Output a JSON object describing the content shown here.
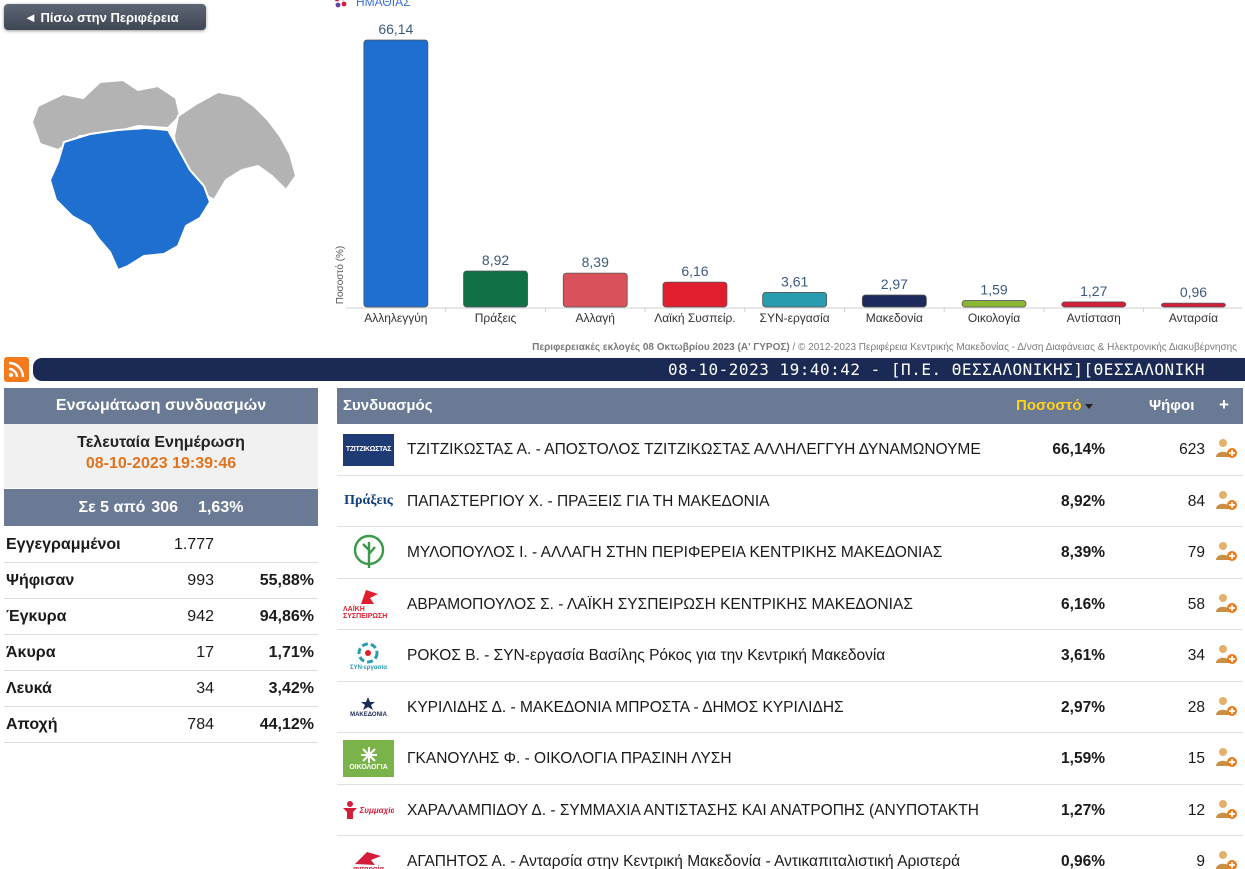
{
  "back_button": "◄ Πίσω στην Περιφέρεια",
  "chart_region_label": "ΗΜΑΘΙΑΣ",
  "chart_data": {
    "type": "bar",
    "categories": [
      "Αλληλεγγύη",
      "Πράξεις",
      "Αλλαγή",
      "Λαϊκή Συσπείρ.",
      "ΣΥΝ-εργασία",
      "Μακεδονία",
      "Οικολογία",
      "Αντίσταση",
      "Ανταρσία"
    ],
    "values": [
      66.14,
      8.92,
      8.39,
      6.16,
      3.61,
      2.97,
      1.59,
      1.27,
      0.96
    ],
    "value_labels": [
      "66,14",
      "8,92",
      "8,39",
      "6,16",
      "3,61",
      "2,97",
      "1,59",
      "1,27",
      "0,96"
    ],
    "colors": [
      "#1e6fd0",
      "#127046",
      "#d9515b",
      "#e01e2e",
      "#2a9cb0",
      "#1c2a5c",
      "#8ab833",
      "#d21e3a",
      "#d21e3a"
    ],
    "ylabel": "Ποσοστό (%)",
    "ylim": [
      0,
      70
    ],
    "grid": false,
    "legend": "none"
  },
  "credits_bold": "Περιφερειακές εκλογές 08 Οκτωβρίου 2023 (Α' ΓΥΡΟΣ)",
  "credits_rest": " / © 2012-2023 Περιφέρεια Κεντρικής Μακεδονίας - Δ/νση Διαφάνειας & Ηλεκτρονικής Διακυβέρνησης",
  "ticker_text": "08-10-2023 19:40:42 - [Π.Ε. ΘΕΣΣΑΛΟΝΙΚΗΣ][ΘΕΣΣΑΛΟΝΙΚΗ",
  "left_panel": {
    "title": "Ενσωμάτωση συνδυασμών",
    "update_label": "Τελευταία Ενημέρωση",
    "update_time": "08-10-2023 19:39:46",
    "count_prefix": "Σε 5 από",
    "count_total": "306",
    "count_pct": "1,63%",
    "stats": [
      {
        "label": "Εγγεγραμμένοι",
        "value": "1.777",
        "pct": ""
      },
      {
        "label": "Ψήφισαν",
        "value": "993",
        "pct": "55,88%"
      },
      {
        "label": "Έγκυρα",
        "value": "942",
        "pct": "94,86%"
      },
      {
        "label": "Άκυρα",
        "value": "17",
        "pct": "1,71%"
      },
      {
        "label": "Λευκά",
        "value": "34",
        "pct": "3,42%"
      },
      {
        "label": "Αποχή",
        "value": "784",
        "pct": "44,12%"
      }
    ]
  },
  "table": {
    "col_party": "Συνδυασμός",
    "col_pct": "Ποσοστό",
    "col_votes": "Ψήφοι",
    "col_plus": "+",
    "rows": [
      {
        "logo": "ΤΖΙΤΖΙΚΩΣΤΑΣ",
        "name": "ΤΖΙΤΖΙΚΩΣΤΑΣ Α. - ΑΠΟΣΤΟΛΟΣ ΤΖΙΤΖΙΚΩΣΤΑΣ ΑΛΛΗΛΕΓΓΥΗ ΔΥΝΑΜΩΝΟΥΜΕ",
        "pct": "66,14%",
        "votes": "623"
      },
      {
        "logo": "Πράξεις",
        "name": "ΠΑΠΑΣΤΕΡΓΙΟΥ Χ. - ΠΡΑΞΕΙΣ ΓΙΑ ΤΗ ΜΑΚΕΔΟΝΙΑ",
        "pct": "8,92%",
        "votes": "84"
      },
      {
        "logo": "",
        "name": "ΜΥΛΟΠΟΥΛΟΣ Ι. - ΑΛΛΑΓΗ ΣΤΗΝ ΠΕΡΙΦΕΡΕΙΑ ΚΕΝΤΡΙΚΗΣ ΜΑΚΕΔΟΝΙΑΣ",
        "pct": "8,39%",
        "votes": "79"
      },
      {
        "logo": "ΛΑΪΚΗ ΣΥΣΠΕΙΡΩΣΗ",
        "name": "ΑΒΡΑΜΟΠΟΥΛΟΣ Σ. - ΛΑΪΚΗ ΣΥΣΠΕΙΡΩΣΗ ΚΕΝΤΡΙΚΗΣ ΜΑΚΕΔΟΝΙΑΣ",
        "pct": "6,16%",
        "votes": "58"
      },
      {
        "logo": "ΣΥΝ-εργασία",
        "name": "ΡΟΚΟΣ Β. - ΣΥΝ-εργασία Βασίλης Ρόκος για την Κεντρική Μακεδονία",
        "pct": "3,61%",
        "votes": "34"
      },
      {
        "logo": "ΜΑΚΕΔΟΝΙΑ",
        "name": "ΚΥΡΙΛΙΔΗΣ Δ. - ΜΑΚΕΔΟΝΙΑ ΜΠΡΟΣΤΑ - ΔΗΜΟΣ ΚΥΡΙΛΙΔΗΣ",
        "pct": "2,97%",
        "votes": "28"
      },
      {
        "logo": "ΟΙΚΟΛΟΓΙΑ",
        "name": "ΓΚΑΝΟΥΛΗΣ Φ. - ΟΙΚΟΛΟΓΙΑ ΠΡΑΣΙΝΗ ΛΥΣΗ",
        "pct": "1,59%",
        "votes": "15"
      },
      {
        "logo": "Συμμαχία",
        "name": "ΧΑΡΑΛΑΜΠΙΔΟΥ Δ. - ΣΥΜΜΑΧΙΑ ΑΝΤΙΣΤΑΣΗΣ ΚΑΙ ΑΝΑΤΡΟΠΗΣ (ΑΝΥΠΟΤΑΚΤΗ",
        "pct": "1,27%",
        "votes": "12"
      },
      {
        "logo": "ανταρσία",
        "name": "ΑΓΑΠΗΤΟΣ Α. - Ανταρσία στην Κεντρική Μακεδονία - Αντικαπιταλιστική Αριστερά",
        "pct": "0,96%",
        "votes": "9"
      }
    ]
  },
  "colors": {
    "header_bg": "#6a7a95",
    "ticker_bg": "#1a2a55",
    "accent_orange": "#e0741e",
    "sort_active": "#ffd21a",
    "map_selected": "#1e6fd0",
    "map_other": "#b3b3b3"
  },
  "icons": {
    "rss": "rss-icon",
    "person_add": "person-add-icon",
    "sort": "sort-caret-icon"
  }
}
